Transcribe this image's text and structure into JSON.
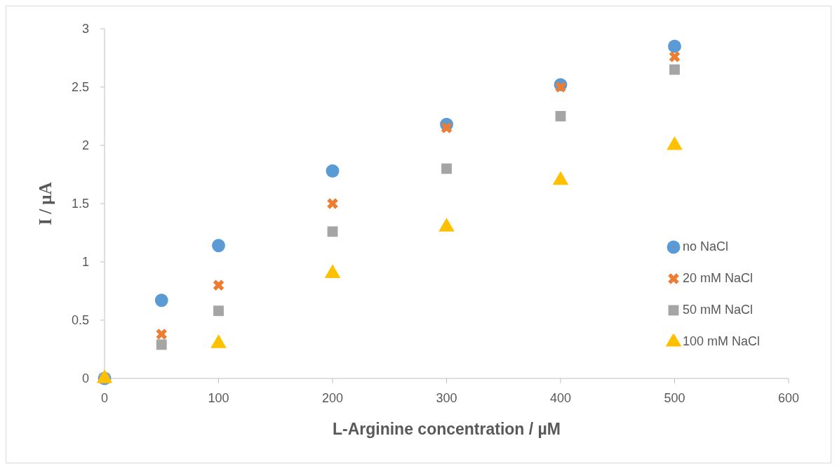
{
  "chart_data": {
    "type": "scatter",
    "xlabel": "L-Arginine concentration / µM",
    "ylabel": "I / µA",
    "x": [
      0,
      50,
      100,
      200,
      300,
      400,
      500
    ],
    "xlim": [
      0,
      600
    ],
    "xticks": [
      0,
      100,
      200,
      300,
      400,
      500,
      600
    ],
    "ylim": [
      0,
      3
    ],
    "yticks": [
      0,
      0.5,
      1,
      1.5,
      2,
      2.5,
      3
    ],
    "grid": false,
    "legend": "right",
    "series": [
      {
        "name": "no NaCl",
        "color": "#5b9bd5",
        "marker": "circle",
        "values": [
          0,
          0.67,
          1.14,
          1.78,
          2.18,
          2.52,
          2.85
        ]
      },
      {
        "name": "20 mM NaCl",
        "color": "#ed7d31",
        "marker": "cross",
        "values": [
          null,
          0.38,
          0.8,
          1.5,
          2.15,
          2.5,
          2.76
        ]
      },
      {
        "name": "50 mM NaCl",
        "color": "#a5a5a5",
        "marker": "square",
        "values": [
          0,
          0.29,
          0.58,
          1.26,
          1.8,
          2.25,
          2.65
        ]
      },
      {
        "name": "100 mM NaCl",
        "color": "#ffc000",
        "marker": "triangle",
        "values": [
          0,
          null,
          0.3,
          0.9,
          1.3,
          1.7,
          2
        ]
      }
    ]
  }
}
